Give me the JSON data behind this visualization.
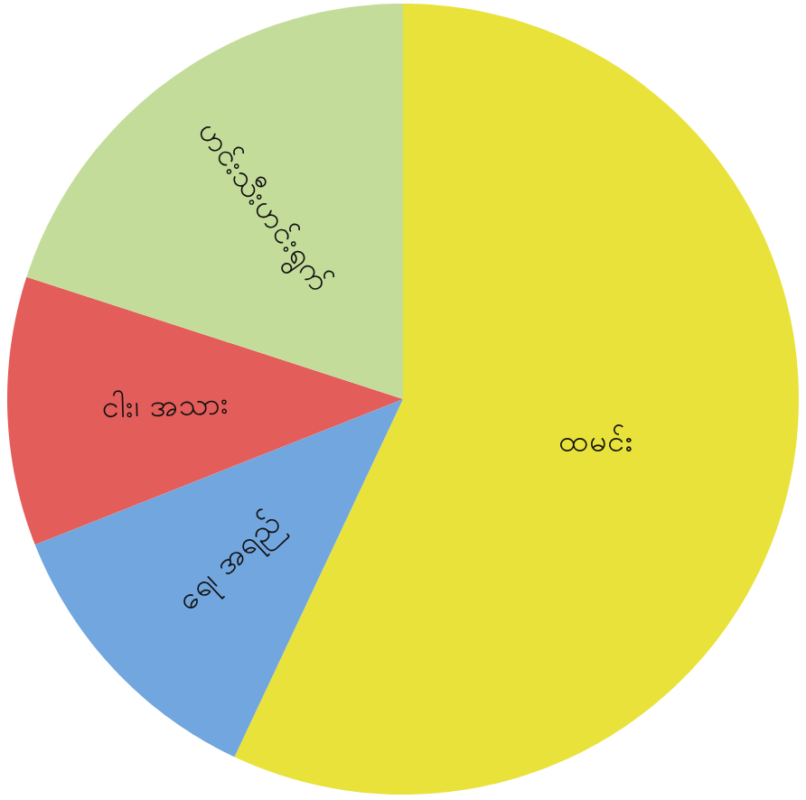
{
  "chart_data": {
    "type": "pie",
    "categories": [
      "ထမင်း",
      "ရေ၊ အရည်",
      "ငါး၊ အသား",
      "ဟင်းသီးဟင်းရွက်"
    ],
    "values": [
      57,
      12,
      11,
      20
    ],
    "colors": [
      "#e9e23a",
      "#72a6de",
      "#e35d5a",
      "#c4dc9a"
    ]
  }
}
